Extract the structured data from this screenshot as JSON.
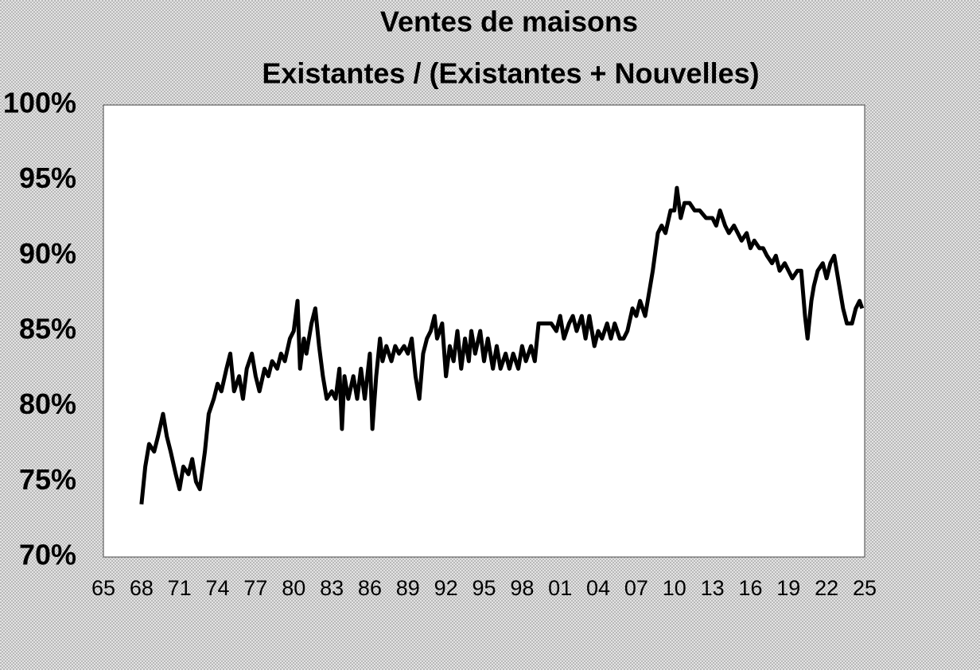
{
  "chart_data": {
    "type": "line",
    "title": "Ventes de maisons",
    "subtitle": "Existantes / (Existantes + Nouvelles)",
    "color": "#000000",
    "x": [
      1968.0,
      1968.3,
      1968.6,
      1969.0,
      1969.3,
      1969.7,
      1970.0,
      1970.3,
      1970.7,
      1971.0,
      1971.3,
      1971.7,
      1972.0,
      1972.3,
      1972.6,
      1973.0,
      1973.3,
      1973.7,
      1974.0,
      1974.3,
      1974.7,
      1975.0,
      1975.3,
      1975.7,
      1976.0,
      1976.3,
      1976.7,
      1977.0,
      1977.3,
      1977.7,
      1978.0,
      1978.3,
      1978.7,
      1979.0,
      1979.3,
      1979.7,
      1980.0,
      1980.3,
      1980.5,
      1980.8,
      1981.0,
      1981.4,
      1981.7,
      1982.0,
      1982.3,
      1982.6,
      1983.0,
      1983.3,
      1983.6,
      1983.8,
      1984.0,
      1984.3,
      1984.7,
      1985.0,
      1985.3,
      1985.6,
      1986.0,
      1986.2,
      1986.5,
      1986.8,
      1987.0,
      1987.3,
      1987.7,
      1988.0,
      1988.3,
      1988.7,
      1989.0,
      1989.3,
      1989.6,
      1989.9,
      1990.2,
      1990.5,
      1990.8,
      1991.1,
      1991.3,
      1991.7,
      1992.0,
      1992.3,
      1992.6,
      1992.9,
      1993.2,
      1993.5,
      1993.8,
      1994.0,
      1994.3,
      1994.7,
      1995.0,
      1995.3,
      1995.7,
      1996.0,
      1996.3,
      1996.7,
      1997.0,
      1997.3,
      1997.7,
      1998.0,
      1998.3,
      1998.7,
      1999.0,
      1999.3,
      1999.6,
      2000.0,
      2000.3,
      2000.7,
      2001.0,
      2001.3,
      2001.7,
      2002.0,
      2002.3,
      2002.7,
      2003.0,
      2003.3,
      2003.7,
      2004.0,
      2004.3,
      2004.7,
      2005.0,
      2005.3,
      2005.7,
      2006.0,
      2006.3,
      2006.7,
      2007.0,
      2007.3,
      2007.7,
      2008.0,
      2008.3,
      2008.7,
      2009.0,
      2009.3,
      2009.7,
      2010.0,
      2010.2,
      2010.5,
      2010.8,
      2011.2,
      2011.6,
      2012.0,
      2012.5,
      2013.0,
      2013.3,
      2013.6,
      2014.0,
      2014.3,
      2014.7,
      2015.0,
      2015.3,
      2015.7,
      2016.0,
      2016.3,
      2016.7,
      2017.0,
      2017.3,
      2017.7,
      2018.0,
      2018.3,
      2018.7,
      2019.0,
      2019.3,
      2019.7,
      2020.0,
      2020.3,
      2020.5,
      2020.8,
      2021.0,
      2021.3,
      2021.7,
      2022.0,
      2022.3,
      2022.6,
      2023.0,
      2023.3,
      2023.6,
      2024.0,
      2024.3,
      2024.6,
      2024.8
    ],
    "values": [
      73.5,
      76,
      77.5,
      77,
      78,
      79.5,
      78,
      77,
      75.5,
      74.5,
      76,
      75.5,
      76.5,
      75,
      74.5,
      77,
      79.5,
      80.5,
      81.5,
      81,
      82.5,
      83.5,
      81,
      82,
      80.5,
      82.5,
      83.5,
      82,
      81,
      82.5,
      82,
      83,
      82.5,
      83.5,
      83,
      84.5,
      85,
      87,
      82.5,
      84.5,
      83.5,
      85.5,
      86.5,
      84,
      82,
      80.5,
      81,
      80.5,
      82.5,
      78.5,
      82,
      80.5,
      82,
      80.5,
      82.5,
      80.5,
      83.5,
      78.5,
      82,
      84.5,
      83,
      84,
      83,
      84,
      83.5,
      84,
      83.5,
      84.5,
      82,
      80.5,
      83.5,
      84.5,
      85,
      86,
      84.5,
      85.5,
      82,
      84,
      83,
      85,
      82.5,
      84.5,
      83,
      85,
      83.5,
      85,
      83,
      84.5,
      82.5,
      84,
      82.5,
      83.5,
      82.5,
      83.5,
      82.5,
      84,
      83,
      84,
      83,
      85.5,
      85.5,
      85.5,
      85.5,
      85,
      86,
      84.5,
      85.5,
      86,
      85,
      86,
      84.5,
      86,
      84,
      85,
      84.5,
      85.5,
      84.5,
      85.5,
      84.5,
      84.5,
      85,
      86.5,
      86,
      87,
      86,
      87.5,
      89,
      91.5,
      92,
      91.5,
      93,
      93,
      94.5,
      92.5,
      93.5,
      93.5,
      93,
      93,
      92.5,
      92.5,
      92,
      93,
      92,
      91.5,
      92,
      91.5,
      91,
      91.5,
      90.5,
      91,
      90.5,
      90.5,
      90,
      89.5,
      90,
      89,
      89.5,
      89,
      88.5,
      89,
      89,
      86,
      84.5,
      87,
      88,
      89,
      89.5,
      88.5,
      89.5,
      90,
      88,
      86.5,
      85.5,
      85.5,
      86.5,
      87,
      86.5
    ],
    "xlim": [
      1965,
      2025
    ],
    "xticks": [
      {
        "value": 1965,
        "label": "65"
      },
      {
        "value": 1968,
        "label": "68"
      },
      {
        "value": 1971,
        "label": "71"
      },
      {
        "value": 1974,
        "label": "74"
      },
      {
        "value": 1977,
        "label": "77"
      },
      {
        "value": 1980,
        "label": "80"
      },
      {
        "value": 1983,
        "label": "83"
      },
      {
        "value": 1986,
        "label": "86"
      },
      {
        "value": 1989,
        "label": "89"
      },
      {
        "value": 1992,
        "label": "92"
      },
      {
        "value": 1995,
        "label": "95"
      },
      {
        "value": 1998,
        "label": "98"
      },
      {
        "value": 2001,
        "label": "01"
      },
      {
        "value": 2004,
        "label": "04"
      },
      {
        "value": 2007,
        "label": "07"
      },
      {
        "value": 2010,
        "label": "10"
      },
      {
        "value": 2013,
        "label": "13"
      },
      {
        "value": 2016,
        "label": "16"
      },
      {
        "value": 2019,
        "label": "19"
      },
      {
        "value": 2022,
        "label": "22"
      },
      {
        "value": 2025,
        "label": "25"
      }
    ],
    "ylim": [
      70,
      100
    ],
    "yticks": [
      {
        "value": 70,
        "label": "70%"
      },
      {
        "value": 75,
        "label": "75%"
      },
      {
        "value": 80,
        "label": "80%"
      },
      {
        "value": 85,
        "label": "85%"
      },
      {
        "value": 90,
        "label": "90%"
      },
      {
        "value": 95,
        "label": "95%"
      },
      {
        "value": 100,
        "label": "100%"
      }
    ]
  }
}
